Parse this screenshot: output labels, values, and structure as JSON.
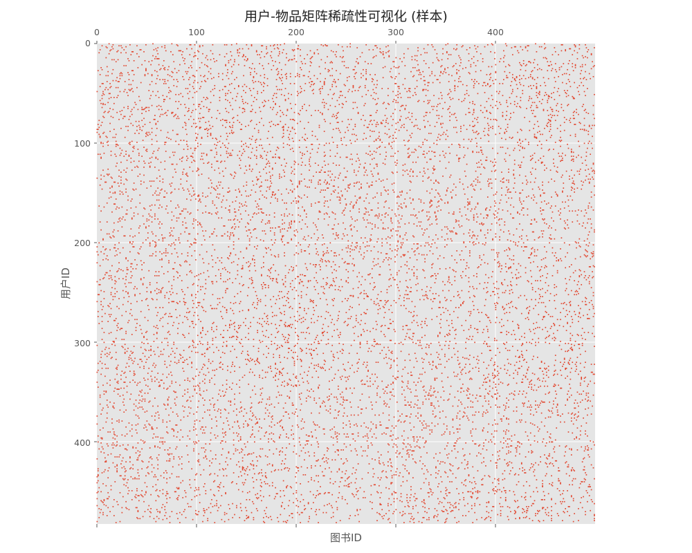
{
  "chart_data": {
    "type": "scatter",
    "title": "用户-物品矩阵稀疏性可视化 (样本)",
    "xlabel": "图书ID",
    "ylabel": "用户ID",
    "x_ticks": [
      "0",
      "100",
      "200",
      "300",
      "400"
    ],
    "y_ticks": [
      "0",
      "100",
      "200",
      "300",
      "400"
    ],
    "xlim": [
      0,
      500
    ],
    "ylim": [
      500,
      0
    ],
    "x_tick_position": "top",
    "y_axis_inverted": true,
    "grid": true,
    "matrix_rows": 500,
    "matrix_cols": 500,
    "density": 0.04,
    "colors": {
      "background": "#e5e5e5",
      "grid": "#ffffff",
      "point": "#e24a33",
      "text": "#555555"
    }
  }
}
